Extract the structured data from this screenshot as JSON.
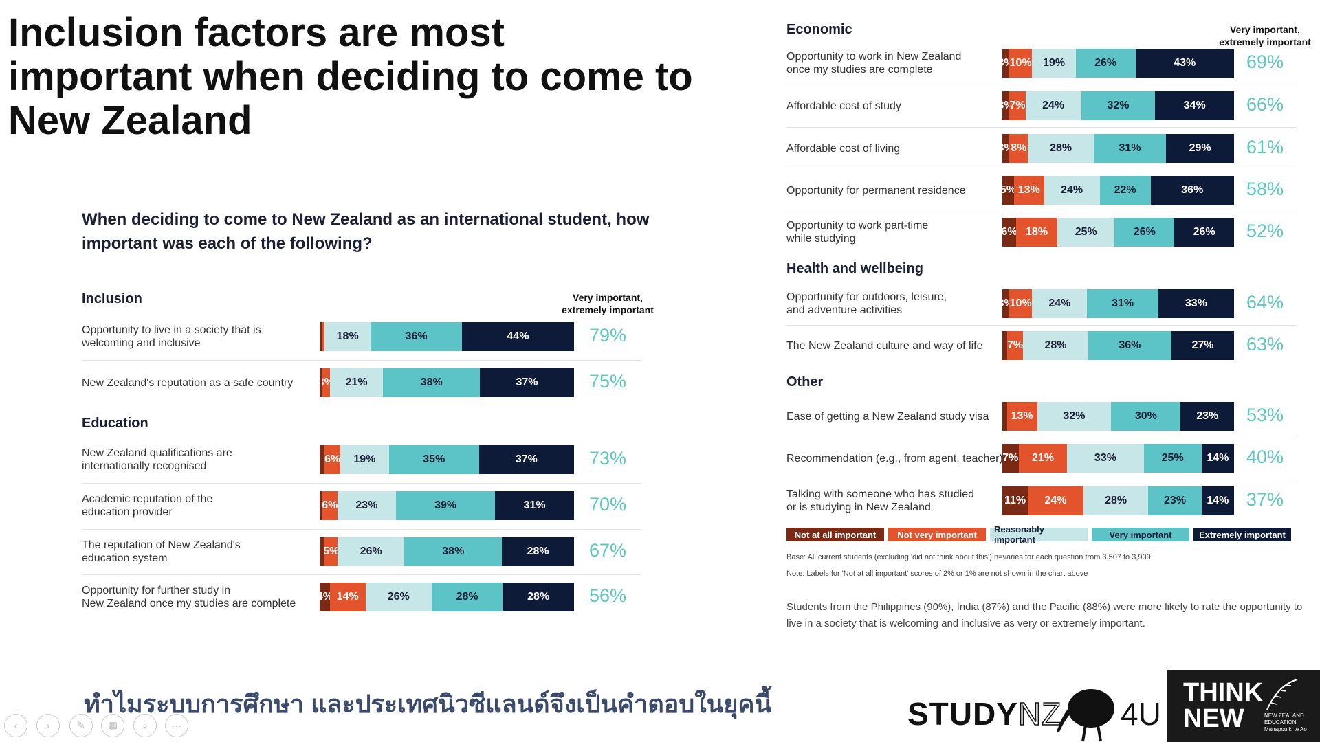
{
  "title": "Inclusion factors are most important when deciding to come to New Zealand",
  "question": "When deciding to come to New Zealand as an international student, how important was each of the following?",
  "column_header": "Very important,\nextremely important",
  "chart_data": {
    "type": "bar",
    "orientation": "horizontal-stacked-100",
    "title": "When deciding to come to New Zealand as an international student, how important was each of the following?",
    "series_names": [
      "Not at all important",
      "Not very important",
      "Reasonably important",
      "Very important",
      "Extremely important"
    ],
    "colors": [
      "#7a2a14",
      "#e4542c",
      "#c6e6e8",
      "#5cc4c6",
      "#0d1a38"
    ],
    "groups": [
      {
        "name": "Inclusion",
        "items": [
          {
            "label": "Opportunity to live in a society that is\nwelcoming and inclusive",
            "values": [
              1,
              1,
              18,
              36,
              44
            ],
            "labels": [
              "",
              "",
              "18%",
              "36%",
              "44%"
            ],
            "total": "79%"
          },
          {
            "label": "New Zealand's reputation as a safe country",
            "values": [
              1,
              3,
              21,
              38,
              37
            ],
            "labels": [
              "",
              "3%",
              "21%",
              "38%",
              "37%"
            ],
            "total": "75%"
          }
        ]
      },
      {
        "name": "Education",
        "items": [
          {
            "label": "New Zealand qualifications are\ninternationally recognised",
            "values": [
              2,
              6,
              19,
              35,
              37
            ],
            "labels": [
              "",
              "6%",
              "19%",
              "35%",
              "37%"
            ],
            "total": "73%"
          },
          {
            "label": "Academic reputation of the\n education provider",
            "values": [
              1,
              6,
              23,
              39,
              31
            ],
            "labels": [
              "",
              "6%",
              "23%",
              "39%",
              "31%"
            ],
            "total": "70%"
          },
          {
            "label": "The reputation of New Zealand's\neducation system",
            "values": [
              2,
              5,
              26,
              38,
              28
            ],
            "labels": [
              "",
              "5%",
              "26%",
              "38%",
              "28%"
            ],
            "total": "67%"
          },
          {
            "label": "Opportunity for further study in\nNew Zealand once my studies are complete",
            "values": [
              4,
              14,
              26,
              28,
              28
            ],
            "labels": [
              "4%",
              "14%",
              "26%",
              "28%",
              "28%"
            ],
            "total": "56%"
          }
        ]
      },
      {
        "name": "Economic",
        "items": [
          {
            "label": "Opportunity to work in New Zealand\nonce my studies are complete",
            "values": [
              3,
              10,
              19,
              26,
              43
            ],
            "labels": [
              "3%",
              "10%",
              "19%",
              "26%",
              "43%"
            ],
            "total": "69%"
          },
          {
            "label": "Affordable cost of study",
            "values": [
              3,
              7,
              24,
              32,
              34
            ],
            "labels": [
              "3%",
              "7%",
              "24%",
              "32%",
              "34%"
            ],
            "total": "66%"
          },
          {
            "label": "Affordable cost of living",
            "values": [
              3,
              8,
              28,
              31,
              29
            ],
            "labels": [
              "3%",
              "8%",
              "28%",
              "31%",
              "29%"
            ],
            "total": "61%"
          },
          {
            "label": "Opportunity for permanent residence",
            "values": [
              5,
              13,
              24,
              22,
              36
            ],
            "labels": [
              "5%",
              "13%",
              "24%",
              "22%",
              "36%"
            ],
            "total": "58%"
          },
          {
            "label": "Opportunity to work part-time\nwhile studying",
            "values": [
              6,
              18,
              25,
              26,
              26
            ],
            "labels": [
              "6%",
              "18%",
              "25%",
              "26%",
              "26%"
            ],
            "total": "52%"
          }
        ]
      },
      {
        "name": "Health and wellbeing",
        "items": [
          {
            "label": "Opportunity for outdoors, leisure,\nand adventure activities",
            "values": [
              3,
              10,
              24,
              31,
              33
            ],
            "labels": [
              "3%",
              "10%",
              "24%",
              "31%",
              "33%"
            ],
            "total": "64%"
          },
          {
            "label": "The New Zealand culture and way of life",
            "values": [
              2,
              7,
              28,
              36,
              27
            ],
            "labels": [
              "",
              "7%",
              "28%",
              "36%",
              "27%"
            ],
            "total": "63%"
          }
        ]
      },
      {
        "name": "Other",
        "items": [
          {
            "label": "Ease of getting a New Zealand study visa",
            "values": [
              2,
              13,
              32,
              30,
              23
            ],
            "labels": [
              "",
              "13%",
              "32%",
              "30%",
              "23%"
            ],
            "total": "53%"
          },
          {
            "label": "Recommendation (e.g., from agent, teacher)",
            "values": [
              7,
              21,
              33,
              25,
              14
            ],
            "labels": [
              "7%",
              "21%",
              "33%",
              "25%",
              "14%"
            ],
            "total": "40%"
          },
          {
            "label": "Talking with someone who has studied\nor is studying in New Zealand",
            "values": [
              11,
              24,
              28,
              23,
              14
            ],
            "labels": [
              "11%",
              "24%",
              "28%",
              "23%",
              "14%"
            ],
            "total": "37%"
          }
        ]
      }
    ],
    "xlim": [
      0,
      100
    ]
  },
  "base_note": "Base: All current students (excluding 'did not think about this') n=varies for each question from 3,507 to 3,909",
  "label_note": "Note: Labels for 'Not at all important' scores of 2% or 1% are not shown in the chart above",
  "summary": "Students from the Philippines (90%), India (87%) and the Pacific (88%) were more likely to rate the opportunity to live in a society that is welcoming and inclusive as very or extremely important.",
  "footer": {
    "thai_caption": "ทำไมระบบการศึกษา และประเทศนิวซีแลนด์จึงเป็นคำตอบในยุคนี้",
    "study": "STUDY",
    "nz": "NZ",
    "four_u": "4U",
    "think_new": "THINK\nNEW",
    "nz_education": "NEW ZEALAND\nEDUCATION\nManapou ki te Ao"
  },
  "toolbar": [
    "previous",
    "next",
    "pen",
    "slides",
    "zoom",
    "more"
  ]
}
